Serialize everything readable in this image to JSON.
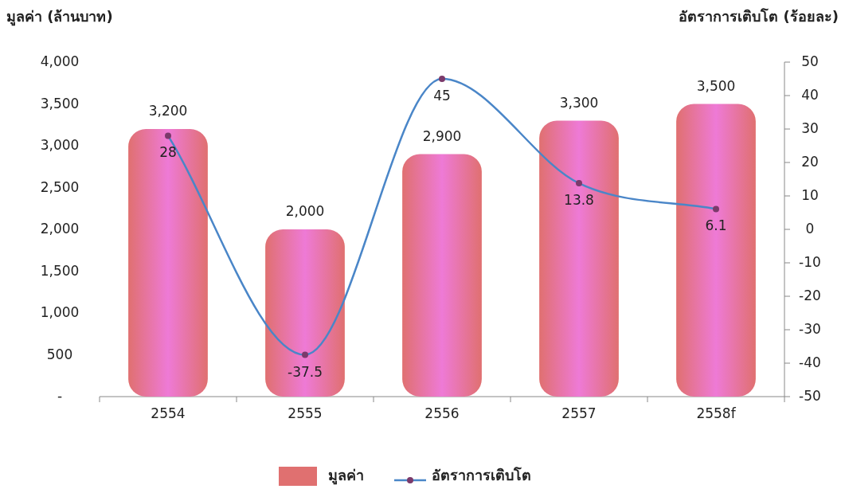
{
  "chart_data": {
    "type": "bar",
    "ylabel": "มูลค่า (ล้านบาท)",
    "y2label": "อัตราการเติบโต (ร้อยละ)",
    "categories": [
      "2554",
      "2555",
      "2556",
      "2557",
      "2558f"
    ],
    "series": [
      {
        "name": "มูลค่า",
        "color": "#e07070",
        "values": [
          3200,
          2000,
          2900,
          3300,
          3500
        ],
        "value_labels": [
          "3,200",
          "2,000",
          "2,900",
          "3,300",
          "3,500"
        ]
      },
      {
        "name": "อัตราการเติบโต",
        "type": "line",
        "axis": "y2",
        "color": "#4a86c8",
        "marker": "circle",
        "values": [
          28,
          -37.5,
          45,
          13.8,
          6.1
        ]
      }
    ],
    "data_labels": true,
    "ylim": [
      0,
      4000
    ],
    "yticks": [
      {
        "value": 0,
        "label": "-"
      },
      {
        "value": 500,
        "label": "500"
      },
      {
        "value": 1000,
        "label": "1,000"
      },
      {
        "value": 1500,
        "label": "1,500"
      },
      {
        "value": 2000,
        "label": "2,000"
      },
      {
        "value": 2500,
        "label": "2,500"
      },
      {
        "value": 3000,
        "label": "3,000"
      },
      {
        "value": 3500,
        "label": "3,500"
      },
      {
        "value": 4000,
        "label": "4,000"
      }
    ],
    "y2lim": [
      -50,
      50
    ],
    "y2ticks": [
      -50,
      -40,
      -30,
      -20,
      -10,
      0,
      10,
      20,
      30,
      40,
      50
    ],
    "grid": false,
    "legend": "bottom"
  }
}
